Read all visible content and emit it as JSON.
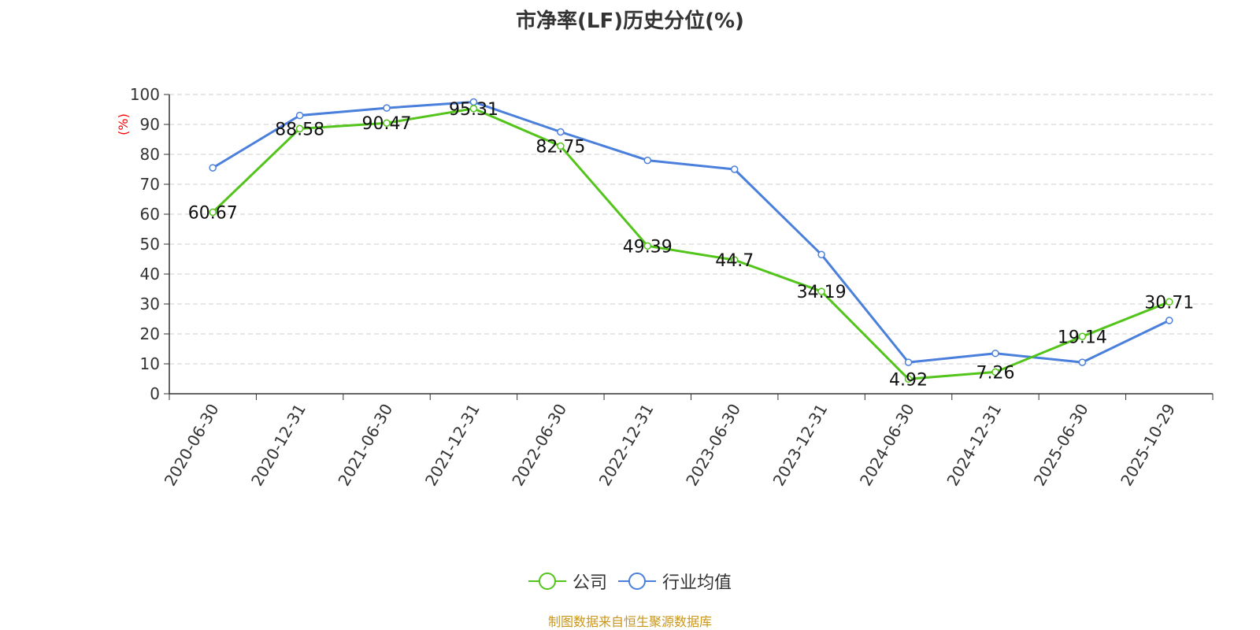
{
  "chart_data": {
    "type": "line",
    "title": "市净率(LF)历史分位(%)",
    "ylabel": "(%)",
    "xlabel": "",
    "ylim": [
      0,
      100
    ],
    "yticks": [
      0,
      10,
      20,
      30,
      40,
      50,
      60,
      70,
      80,
      90,
      100
    ],
    "categories": [
      "2020-06-30",
      "2020-12-31",
      "2021-06-30",
      "2021-12-31",
      "2022-06-30",
      "2022-12-31",
      "2023-06-30",
      "2023-12-31",
      "2024-06-30",
      "2024-12-31",
      "2025-06-30",
      "2025-10-29"
    ],
    "series": [
      {
        "name": "公司",
        "color": "#52c41a",
        "show_labels": true,
        "labels": [
          "60.67",
          "88.58",
          "90.47",
          "95.31",
          "82.75",
          "49.39",
          "44.7",
          "34.19",
          "4.92",
          "7.26",
          "19.14",
          "30.71"
        ],
        "values": [
          60.67,
          88.58,
          90.47,
          95.31,
          82.75,
          49.39,
          44.7,
          34.19,
          4.92,
          7.26,
          19.14,
          30.71
        ]
      },
      {
        "name": "行业均值",
        "color": "#4a7fdb",
        "show_labels": false,
        "values": [
          75.5,
          93.0,
          95.5,
          97.5,
          87.5,
          78.0,
          75.0,
          46.5,
          10.5,
          13.5,
          10.5,
          24.5
        ]
      }
    ],
    "grid": true,
    "legend_position": "bottom-center"
  },
  "footer": {
    "source": "制图数据来自恒生聚源数据库"
  }
}
